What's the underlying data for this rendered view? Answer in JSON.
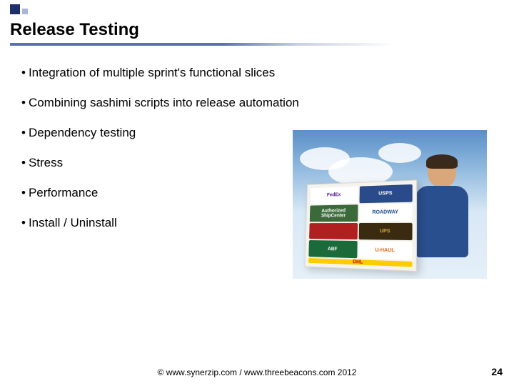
{
  "title": "Release Testing",
  "bullets": [
    "Integration of multiple sprint's functional slices",
    "Combining sashimi scripts into release automation",
    "Dependency testing",
    "Stress",
    "Performance",
    "Install / Uninstall"
  ],
  "footer": "© www.synerzip.com / www.threebeacons.com   2012",
  "page_number": "24",
  "image": {
    "description": "Man holding shipping box with carrier logos against sky",
    "logos": [
      {
        "text": "FedEx",
        "bg": "#ffffff",
        "fg": "#4d148c"
      },
      {
        "text": "USPS",
        "bg": "#2a4a8a",
        "fg": "#ffffff"
      },
      {
        "text": "Authorized ShipCenter",
        "bg": "#3a6a3a",
        "fg": "#ffffff"
      },
      {
        "text": "ROADWAY",
        "bg": "#ffffff",
        "fg": "#1a4a8a"
      },
      {
        "text": "",
        "bg": "#b02020",
        "fg": "#ffffff"
      },
      {
        "text": "UPS",
        "bg": "#3a2a10",
        "fg": "#d4a83a"
      },
      {
        "text": "ABF",
        "bg": "#1a6a3a",
        "fg": "#ffffff"
      },
      {
        "text": "U-HAUL",
        "bg": "#ffffff",
        "fg": "#e06a1a"
      },
      {
        "text": "DHL",
        "bg": "#ffcc00",
        "fg": "#cc0000"
      }
    ]
  },
  "colors": {
    "accent_dark": "#1f2f6b",
    "accent_light": "#a9b7de",
    "underline_start": "#5c6fb5"
  }
}
